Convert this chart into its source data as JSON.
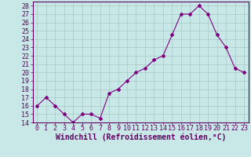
{
  "x": [
    0,
    1,
    2,
    3,
    4,
    5,
    6,
    7,
    8,
    9,
    10,
    11,
    12,
    13,
    14,
    15,
    16,
    17,
    18,
    19,
    20,
    21,
    22,
    23
  ],
  "y": [
    16,
    17,
    16,
    15,
    14,
    15,
    15,
    14.5,
    17.5,
    18,
    19,
    20,
    20.5,
    21.5,
    22,
    24.5,
    27,
    27,
    28,
    27,
    24.5,
    23,
    20.5,
    20
  ],
  "line_color": "#800080",
  "marker": "D",
  "marker_size": 2.0,
  "bg_color": "#c8e8e8",
  "grid_color": "#a8c8c8",
  "xlabel": "Windchill (Refroidissement éolien,°C)",
  "xlabel_fontsize": 7,
  "ylim": [
    14,
    28.5
  ],
  "yticks": [
    14,
    15,
    16,
    17,
    18,
    19,
    20,
    21,
    22,
    23,
    24,
    25,
    26,
    27,
    28
  ],
  "xticks": [
    0,
    1,
    2,
    3,
    4,
    5,
    6,
    7,
    8,
    9,
    10,
    11,
    12,
    13,
    14,
    15,
    16,
    17,
    18,
    19,
    20,
    21,
    22,
    23
  ],
  "axis_color": "#600060",
  "tick_fontsize": 6,
  "line_width": 0.8
}
